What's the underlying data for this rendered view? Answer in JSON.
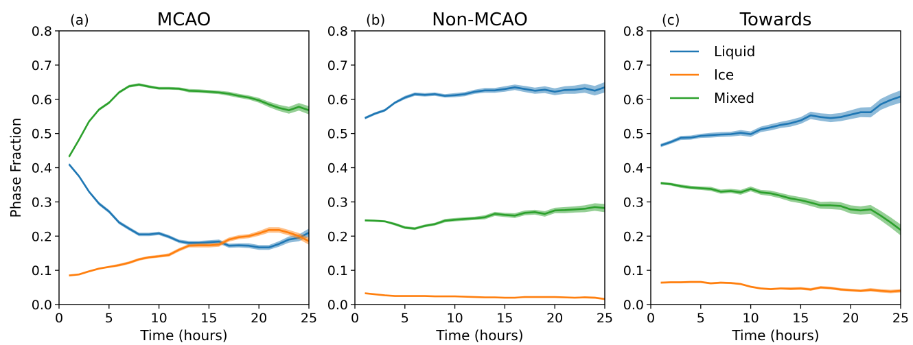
{
  "chart_data": [
    {
      "type": "line",
      "tag": "(a)",
      "title": "MCAO",
      "xlabel": "Time (hours)",
      "ylabel": "Phase Fraction",
      "xlim": [
        0,
        25
      ],
      "ylim": [
        0.0,
        0.8
      ],
      "xticks": [
        "0",
        "5",
        "10",
        "15",
        "20",
        "25"
      ],
      "yticks": [
        "0.0",
        "0.1",
        "0.2",
        "0.3",
        "0.4",
        "0.5",
        "0.6",
        "0.7",
        "0.8"
      ],
      "grid": false,
      "legend": false,
      "x": [
        1,
        2,
        3,
        4,
        5,
        6,
        7,
        8,
        9,
        10,
        11,
        12,
        13,
        14,
        15,
        16,
        17,
        18,
        19,
        20,
        21,
        22,
        23,
        24,
        25
      ],
      "series": [
        {
          "name": "Liquid",
          "color": "#1f77b4",
          "values": [
            0.41,
            0.375,
            0.33,
            0.295,
            0.272,
            0.24,
            0.222,
            0.205,
            0.205,
            0.208,
            0.198,
            0.185,
            0.18,
            0.18,
            0.182,
            0.184,
            0.172,
            0.173,
            0.172,
            0.167,
            0.167,
            0.177,
            0.19,
            0.195,
            0.21
          ],
          "band": [
            0.004,
            0.004,
            0.004,
            0.005,
            0.005,
            0.005,
            0.005,
            0.005,
            0.005,
            0.005,
            0.005,
            0.005,
            0.006,
            0.006,
            0.006,
            0.006,
            0.006,
            0.006,
            0.007,
            0.007,
            0.007,
            0.008,
            0.009,
            0.01,
            0.012
          ]
        },
        {
          "name": "Ice",
          "color": "#ff7f0e",
          "values": [
            0.085,
            0.088,
            0.097,
            0.105,
            0.11,
            0.115,
            0.122,
            0.132,
            0.138,
            0.141,
            0.145,
            0.16,
            0.172,
            0.173,
            0.173,
            0.175,
            0.19,
            0.197,
            0.2,
            0.208,
            0.218,
            0.218,
            0.21,
            0.2,
            0.185
          ],
          "band": [
            0.003,
            0.003,
            0.003,
            0.003,
            0.003,
            0.004,
            0.004,
            0.004,
            0.004,
            0.004,
            0.005,
            0.005,
            0.005,
            0.006,
            0.006,
            0.006,
            0.006,
            0.006,
            0.006,
            0.007,
            0.008,
            0.008,
            0.008,
            0.009,
            0.01
          ]
        },
        {
          "name": "Mixed",
          "color": "#2ca02c",
          "values": [
            0.432,
            0.482,
            0.535,
            0.57,
            0.59,
            0.62,
            0.638,
            0.643,
            0.637,
            0.632,
            0.632,
            0.631,
            0.625,
            0.624,
            0.622,
            0.62,
            0.616,
            0.61,
            0.605,
            0.597,
            0.585,
            0.575,
            0.568,
            0.578,
            0.568
          ],
          "band": [
            0.004,
            0.004,
            0.004,
            0.004,
            0.004,
            0.004,
            0.004,
            0.004,
            0.004,
            0.004,
            0.004,
            0.004,
            0.005,
            0.005,
            0.005,
            0.005,
            0.006,
            0.006,
            0.006,
            0.007,
            0.008,
            0.009,
            0.01,
            0.011,
            0.012
          ]
        }
      ]
    },
    {
      "type": "line",
      "tag": "(b)",
      "title": "Non-MCAO",
      "xlabel": "Time (hours)",
      "ylabel": "",
      "xlim": [
        0,
        25
      ],
      "ylim": [
        0.0,
        0.8
      ],
      "xticks": [
        "0",
        "5",
        "10",
        "15",
        "20",
        "25"
      ],
      "yticks": [
        "0.0",
        "0.1",
        "0.2",
        "0.3",
        "0.4",
        "0.5",
        "0.6",
        "0.7",
        "0.8"
      ],
      "grid": false,
      "legend": false,
      "x": [
        1,
        2,
        3,
        4,
        5,
        6,
        7,
        8,
        9,
        10,
        11,
        12,
        13,
        14,
        15,
        16,
        17,
        18,
        19,
        20,
        21,
        22,
        23,
        24,
        25
      ],
      "series": [
        {
          "name": "Liquid",
          "color": "#1f77b4",
          "values": [
            0.545,
            0.558,
            0.568,
            0.59,
            0.605,
            0.615,
            0.613,
            0.615,
            0.61,
            0.612,
            0.615,
            0.622,
            0.626,
            0.626,
            0.63,
            0.635,
            0.63,
            0.625,
            0.628,
            0.622,
            0.627,
            0.628,
            0.632,
            0.625,
            0.635
          ],
          "band": [
            0.004,
            0.004,
            0.004,
            0.004,
            0.005,
            0.005,
            0.005,
            0.005,
            0.005,
            0.006,
            0.006,
            0.006,
            0.007,
            0.007,
            0.008,
            0.008,
            0.009,
            0.009,
            0.01,
            0.01,
            0.011,
            0.012,
            0.013,
            0.014,
            0.015
          ]
        },
        {
          "name": "Ice",
          "color": "#ff7f0e",
          "values": [
            0.033,
            0.03,
            0.027,
            0.025,
            0.025,
            0.025,
            0.025,
            0.024,
            0.024,
            0.024,
            0.023,
            0.022,
            0.021,
            0.021,
            0.02,
            0.02,
            0.022,
            0.022,
            0.022,
            0.022,
            0.021,
            0.02,
            0.021,
            0.02,
            0.016
          ],
          "band": [
            0.002,
            0.002,
            0.002,
            0.002,
            0.002,
            0.002,
            0.002,
            0.002,
            0.002,
            0.002,
            0.002,
            0.002,
            0.002,
            0.002,
            0.002,
            0.002,
            0.002,
            0.002,
            0.002,
            0.002,
            0.002,
            0.002,
            0.003,
            0.003,
            0.003
          ]
        },
        {
          "name": "Mixed",
          "color": "#2ca02c",
          "values": [
            0.246,
            0.245,
            0.243,
            0.235,
            0.225,
            0.222,
            0.23,
            0.235,
            0.245,
            0.248,
            0.25,
            0.252,
            0.255,
            0.265,
            0.262,
            0.26,
            0.268,
            0.27,
            0.265,
            0.275,
            0.276,
            0.278,
            0.28,
            0.285,
            0.282
          ],
          "band": [
            0.003,
            0.003,
            0.003,
            0.004,
            0.004,
            0.004,
            0.004,
            0.004,
            0.005,
            0.005,
            0.005,
            0.005,
            0.006,
            0.006,
            0.006,
            0.007,
            0.007,
            0.007,
            0.008,
            0.008,
            0.009,
            0.009,
            0.01,
            0.011,
            0.012
          ]
        }
      ]
    },
    {
      "type": "line",
      "tag": "(c)",
      "title": "Towards",
      "xlabel": "Time (hours)",
      "ylabel": "",
      "xlim": [
        0,
        25
      ],
      "ylim": [
        0.0,
        0.8
      ],
      "xticks": [
        "0",
        "5",
        "10",
        "15",
        "20",
        "25"
      ],
      "yticks": [
        "0.0",
        "0.1",
        "0.2",
        "0.3",
        "0.4",
        "0.5",
        "0.6",
        "0.7",
        "0.8"
      ],
      "grid": false,
      "legend": true,
      "legend_position": "top-left",
      "x": [
        1,
        2,
        3,
        4,
        5,
        6,
        7,
        8,
        9,
        10,
        11,
        12,
        13,
        14,
        15,
        16,
        17,
        18,
        19,
        20,
        21,
        22,
        23,
        24,
        25
      ],
      "series": [
        {
          "name": "Liquid",
          "color": "#1f77b4",
          "values": [
            0.465,
            0.475,
            0.487,
            0.488,
            0.493,
            0.495,
            0.497,
            0.498,
            0.502,
            0.498,
            0.512,
            0.518,
            0.525,
            0.53,
            0.538,
            0.553,
            0.548,
            0.545,
            0.548,
            0.555,
            0.562,
            0.562,
            0.585,
            0.598,
            0.608
          ],
          "band": [
            0.005,
            0.005,
            0.006,
            0.006,
            0.006,
            0.007,
            0.007,
            0.007,
            0.008,
            0.008,
            0.008,
            0.009,
            0.009,
            0.01,
            0.01,
            0.011,
            0.011,
            0.012,
            0.012,
            0.013,
            0.014,
            0.015,
            0.016,
            0.017,
            0.018
          ]
        },
        {
          "name": "Ice",
          "color": "#ff7f0e",
          "values": [
            0.064,
            0.065,
            0.065,
            0.066,
            0.066,
            0.062,
            0.064,
            0.063,
            0.06,
            0.052,
            0.047,
            0.045,
            0.047,
            0.046,
            0.047,
            0.044,
            0.05,
            0.048,
            0.044,
            0.042,
            0.04,
            0.043,
            0.04,
            0.038,
            0.04
          ],
          "band": [
            0.003,
            0.003,
            0.003,
            0.003,
            0.003,
            0.003,
            0.003,
            0.003,
            0.003,
            0.003,
            0.003,
            0.003,
            0.003,
            0.004,
            0.004,
            0.004,
            0.004,
            0.004,
            0.004,
            0.004,
            0.004,
            0.005,
            0.005,
            0.005,
            0.005
          ]
        },
        {
          "name": "Mixed",
          "color": "#2ca02c",
          "values": [
            0.355,
            0.352,
            0.346,
            0.342,
            0.34,
            0.338,
            0.33,
            0.332,
            0.328,
            0.338,
            0.328,
            0.325,
            0.318,
            0.31,
            0.305,
            0.298,
            0.29,
            0.29,
            0.288,
            0.278,
            0.275,
            0.278,
            0.26,
            0.24,
            0.218
          ],
          "band": [
            0.004,
            0.004,
            0.005,
            0.005,
            0.005,
            0.006,
            0.006,
            0.006,
            0.007,
            0.007,
            0.007,
            0.008,
            0.008,
            0.009,
            0.009,
            0.01,
            0.01,
            0.011,
            0.011,
            0.012,
            0.012,
            0.013,
            0.014,
            0.015,
            0.016
          ]
        }
      ]
    }
  ]
}
